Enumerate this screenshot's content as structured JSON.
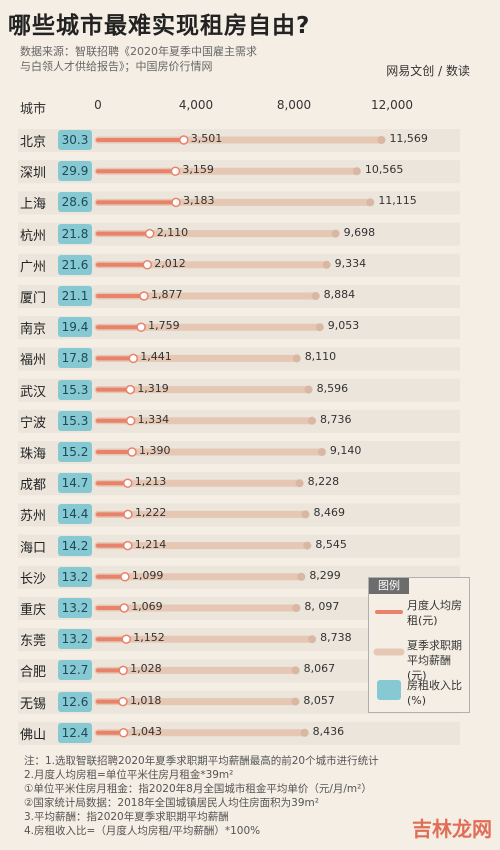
{
  "title": "哪些城市最难实现租房自由?",
  "source": [
    "数据来源：智联招聘《2020年夏季中国雇主需求",
    "与白领人才供给报告》；中国房价行情网"
  ],
  "brand": {
    "text1": "网易文创",
    "accent": "数读",
    "sep": "/",
    "text2": "数读"
  },
  "column_label": "城市",
  "legend": {
    "title": "图例",
    "rent": "月度人均房租(元)",
    "salary": "夏季求职期平均薪酬(元)",
    "ratio": "房租收入比(%)"
  },
  "colors": {
    "rent": "#e8826a",
    "salary": "#e6c7b4",
    "ratio": "#86c9d3",
    "row_bg": "#ebe5dc"
  },
  "chart_data": {
    "type": "bar",
    "xlim": [
      0,
      12000
    ],
    "ticks": [
      "0",
      "4,000",
      "8,000",
      "12,000"
    ],
    "tick_values": [
      0,
      4000,
      8000,
      12000
    ],
    "categories": [
      "北京",
      "深圳",
      "上海",
      "杭州",
      "广州",
      "厦门",
      "南京",
      "福州",
      "武汉",
      "宁波",
      "珠海",
      "成都",
      "苏州",
      "海口",
      "长沙",
      "重庆",
      "东莞",
      "合肥",
      "无锡",
      "佛山"
    ],
    "series": [
      {
        "name": "月度人均房租(元)",
        "values": [
          3501,
          3159,
          3183,
          2110,
          2012,
          1877,
          1759,
          1441,
          1319,
          1334,
          1390,
          1213,
          1222,
          1214,
          1099,
          1069,
          1152,
          1028,
          1018,
          1043
        ],
        "labels": [
          "3,501",
          "3,159",
          "3,183",
          "2,110",
          "2,012",
          "1,877",
          "1,759",
          "1,441",
          "1,319",
          "1,334",
          "1,390",
          "1,213",
          "1,222",
          "1,214",
          "1,099",
          "1,069",
          "1,152",
          "1,028",
          "1,018",
          "1,043"
        ]
      },
      {
        "name": "夏季求职期平均薪酬(元)",
        "values": [
          11569,
          10565,
          11115,
          9698,
          9334,
          8884,
          9053,
          8110,
          8596,
          8736,
          9140,
          8228,
          8469,
          8545,
          8299,
          8097,
          8738,
          8067,
          8057,
          8436
        ],
        "labels": [
          "11,569",
          "10,565",
          "11,115",
          "9,698",
          "9,334",
          "8,884",
          "9,053",
          "8,110",
          "8,596",
          "8,736",
          "9,140",
          "8,228",
          "8,469",
          "8,545",
          "8,299",
          "8, 097",
          "8,738",
          "8,067",
          "8,057",
          "8,436"
        ]
      },
      {
        "name": "房租收入比(%)",
        "values": [
          30.3,
          29.9,
          28.6,
          21.8,
          21.6,
          21.1,
          19.4,
          17.8,
          15.3,
          15.3,
          15.2,
          14.7,
          14.4,
          14.2,
          13.2,
          13.2,
          13.2,
          12.7,
          12.6,
          12.4
        ],
        "labels": [
          "30.3",
          "29.9",
          "28.6",
          "21.8",
          "21.6",
          "21.1",
          "19.4",
          "17.8",
          "15.3",
          "15.3",
          "15.2",
          "14.7",
          "14.4",
          "14.2",
          "13.2",
          "13.2",
          "13.2",
          "12.7",
          "12.6",
          "12.4"
        ]
      }
    ]
  },
  "footnotes": [
    "注：1.选取智联招聘2020年夏季求职期平均薪酬最高的前20个城市进行统计",
    "2.月度人均房租=单位平米住房月租金*39m²",
    "①单位平米住房月租金：指2020年8月全国城市租金平均单价（元/月/m²）",
    "②国家统计局数据：2018年全国城镇居民人均住房面积为39m²",
    "3.平均薪酬：指2020年夏季求职期平均薪酬",
    "4.房租收入比=（月度人均房租/平均薪酬）*100%"
  ],
  "watermark": "吉林龙网"
}
